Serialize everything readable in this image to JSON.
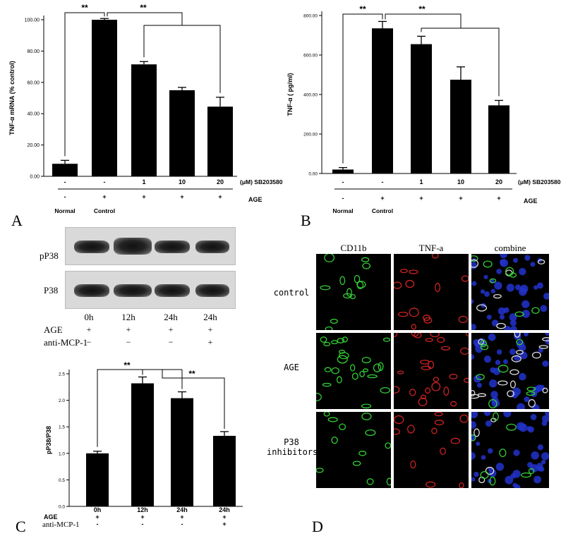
{
  "panels": {
    "A": "A",
    "B": "B",
    "C": "C",
    "D": "D"
  },
  "chart_data": [
    {
      "type": "bar",
      "panel": "A",
      "ylabel": "TNF-α mRNA (% control)",
      "ylim": [
        0,
        100
      ],
      "yticks": [
        "0.00",
        "20.00",
        "40.00",
        "60.00",
        "80.00",
        "100.00"
      ],
      "values": [
        8,
        100,
        71.5,
        55,
        44.5
      ],
      "errors": [
        2.2,
        0.8,
        1.8,
        1.8,
        6
      ],
      "sb_row": [
        "-",
        "-",
        "1",
        "10",
        "20"
      ],
      "sb_label": "(μM) SB203580",
      "age_row": [
        "-",
        "+",
        "+",
        "+",
        "+"
      ],
      "age_label": "AGE",
      "group_labels": [
        "Normal",
        "Control",
        "",
        "",
        ""
      ],
      "sig": [
        "**",
        "**"
      ]
    },
    {
      "type": "bar",
      "panel": "B",
      "ylabel": "TNF-α ( pg/ml)",
      "ylim": [
        0,
        800
      ],
      "yticks": [
        "0.00",
        "200.00",
        "400.00",
        "600.00",
        "800.00"
      ],
      "values": [
        20,
        735,
        655,
        475,
        345
      ],
      "errors": [
        10,
        35,
        40,
        65,
        25
      ],
      "sb_row": [
        "-",
        "-",
        "1",
        "10",
        "20"
      ],
      "sb_label": "(μM) SB203580",
      "age_row": [
        "-",
        "+",
        "+",
        "+",
        "+"
      ],
      "age_label": "AGE",
      "group_labels": [
        "Normal",
        "Control",
        "",
        "",
        ""
      ],
      "sig": [
        "**",
        "**"
      ]
    },
    {
      "type": "bar",
      "panel": "C",
      "ylabel": "pP38/P38",
      "ylim": [
        0,
        2.5
      ],
      "yticks": [
        "0.0",
        "0.5",
        "1.0",
        "1.5",
        "2.0",
        "2.5"
      ],
      "categories": [
        "0h",
        "12h",
        "24h",
        "24h"
      ],
      "values": [
        1.0,
        2.32,
        2.04,
        1.33
      ],
      "errors": [
        0.04,
        0.12,
        0.12,
        0.08
      ],
      "age_row": [
        "+",
        "+",
        "+",
        "+"
      ],
      "age_label": "AGE",
      "mcp_row": [
        "-",
        "-",
        "-",
        "+"
      ],
      "mcp_label": "anti-MCP-1",
      "sig": [
        "**",
        "**"
      ]
    }
  ],
  "blot": {
    "rows": [
      "pP38",
      "P38"
    ],
    "lanes": [
      "0h",
      "12h",
      "24h",
      "24h"
    ],
    "age_label": "AGE",
    "age_signs": [
      "+",
      "+",
      "+",
      "+"
    ],
    "mcp_label": "anti-MCP-1",
    "mcp_signs": [
      "−",
      "−",
      "−",
      "+"
    ]
  },
  "micro": {
    "columns": [
      "CD11b",
      "TNF-a",
      "combine"
    ],
    "rows": [
      "control",
      "AGE",
      "P38\ninhibitors"
    ],
    "colors": {
      "green": "#33cc33",
      "red": "#cc2222",
      "blue": "#2233cc"
    }
  }
}
